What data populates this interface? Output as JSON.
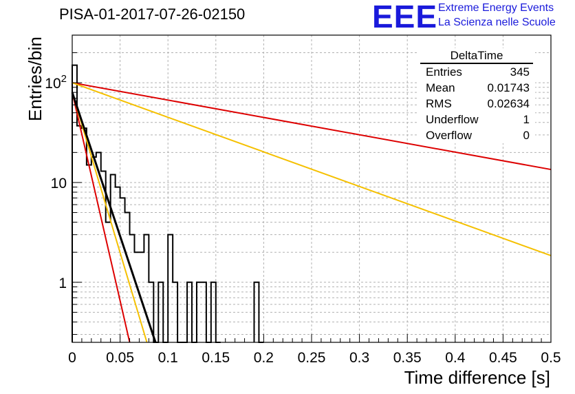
{
  "header": {
    "title": "PISA-01-2017-07-26-02150",
    "logo_text": "EEE",
    "logo_line1": "Extreme Energy Events",
    "logo_line2": "La Scienza nelle Scuole"
  },
  "colors": {
    "logo": "#1a1adb",
    "histogram": "#000000",
    "fit_black": "#000000",
    "fit_red": "#dd0000",
    "fit_orange": "#f5c000",
    "grid": "#b0b0b0"
  },
  "stats": {
    "title": "DeltaTime",
    "rows": [
      {
        "label": "Entries",
        "value": "345"
      },
      {
        "label": "Mean",
        "value": "0.01743"
      },
      {
        "label": "RMS",
        "value": "0.02634"
      },
      {
        "label": "Underflow",
        "value": "1"
      },
      {
        "label": "Overflow",
        "value": "0"
      }
    ]
  },
  "chart_data": {
    "type": "histogram",
    "title": "PISA-01-2017-07-26-02150",
    "xlabel": "Time difference [s]",
    "ylabel": "Entries/bin",
    "xlim": [
      0,
      0.5
    ],
    "ylim": [
      0.25,
      300
    ],
    "yscale": "log",
    "grid": true,
    "x_ticks": [
      "0",
      "0.05",
      "0.1",
      "0.15",
      "0.2",
      "0.25",
      "0.3",
      "0.35",
      "0.4",
      "0.45",
      "0.5"
    ],
    "y_ticks": [
      {
        "value": 1,
        "label": "1"
      },
      {
        "value": 10,
        "label": "10"
      },
      {
        "value": 100,
        "label": "10^2"
      }
    ],
    "bin_width": 0.005,
    "bins": [
      {
        "x0": 0.0,
        "value": 150
      },
      {
        "x0": 0.005,
        "value": 37
      },
      {
        "x0": 0.01,
        "value": 35
      },
      {
        "x0": 0.015,
        "value": 15
      },
      {
        "x0": 0.02,
        "value": 18
      },
      {
        "x0": 0.025,
        "value": 20
      },
      {
        "x0": 0.03,
        "value": 13
      },
      {
        "x0": 0.035,
        "value": 4
      },
      {
        "x0": 0.04,
        "value": 12
      },
      {
        "x0": 0.045,
        "value": 9
      },
      {
        "x0": 0.05,
        "value": 7
      },
      {
        "x0": 0.055,
        "value": 5
      },
      {
        "x0": 0.06,
        "value": 3
      },
      {
        "x0": 0.065,
        "value": 2
      },
      {
        "x0": 0.07,
        "value": 2
      },
      {
        "x0": 0.075,
        "value": 3
      },
      {
        "x0": 0.08,
        "value": 1
      },
      {
        "x0": 0.085,
        "value": 0
      },
      {
        "x0": 0.09,
        "value": 1
      },
      {
        "x0": 0.095,
        "value": 0
      },
      {
        "x0": 0.1,
        "value": 3
      },
      {
        "x0": 0.105,
        "value": 1
      },
      {
        "x0": 0.11,
        "value": 0
      },
      {
        "x0": 0.115,
        "value": 0
      },
      {
        "x0": 0.12,
        "value": 1
      },
      {
        "x0": 0.125,
        "value": 0
      },
      {
        "x0": 0.13,
        "value": 1
      },
      {
        "x0": 0.135,
        "value": 1
      },
      {
        "x0": 0.14,
        "value": 0
      },
      {
        "x0": 0.145,
        "value": 1
      },
      {
        "x0": 0.15,
        "value": 0
      },
      {
        "x0": 0.19,
        "value": 1
      },
      {
        "x0": 0.195,
        "value": 0
      }
    ],
    "fits": [
      {
        "color": "#dd0000",
        "x0": 0.0,
        "y0": 80,
        "x1": 0.06,
        "y1": 0.25
      },
      {
        "color": "#f5c000",
        "x0": 0.0,
        "y0": 80,
        "x1": 0.078,
        "y1": 0.25
      },
      {
        "color": "#000000",
        "x0": 0.0,
        "y0": 80,
        "x1": 0.087,
        "y1": 0.25
      },
      {
        "color": "#dd0000",
        "x0": 0.0,
        "y0": 100,
        "x1": 0.5,
        "y1": 13.5
      },
      {
        "color": "#f5c000",
        "x0": 0.0,
        "y0": 100,
        "x1": 0.5,
        "y1": 1.85
      }
    ]
  }
}
